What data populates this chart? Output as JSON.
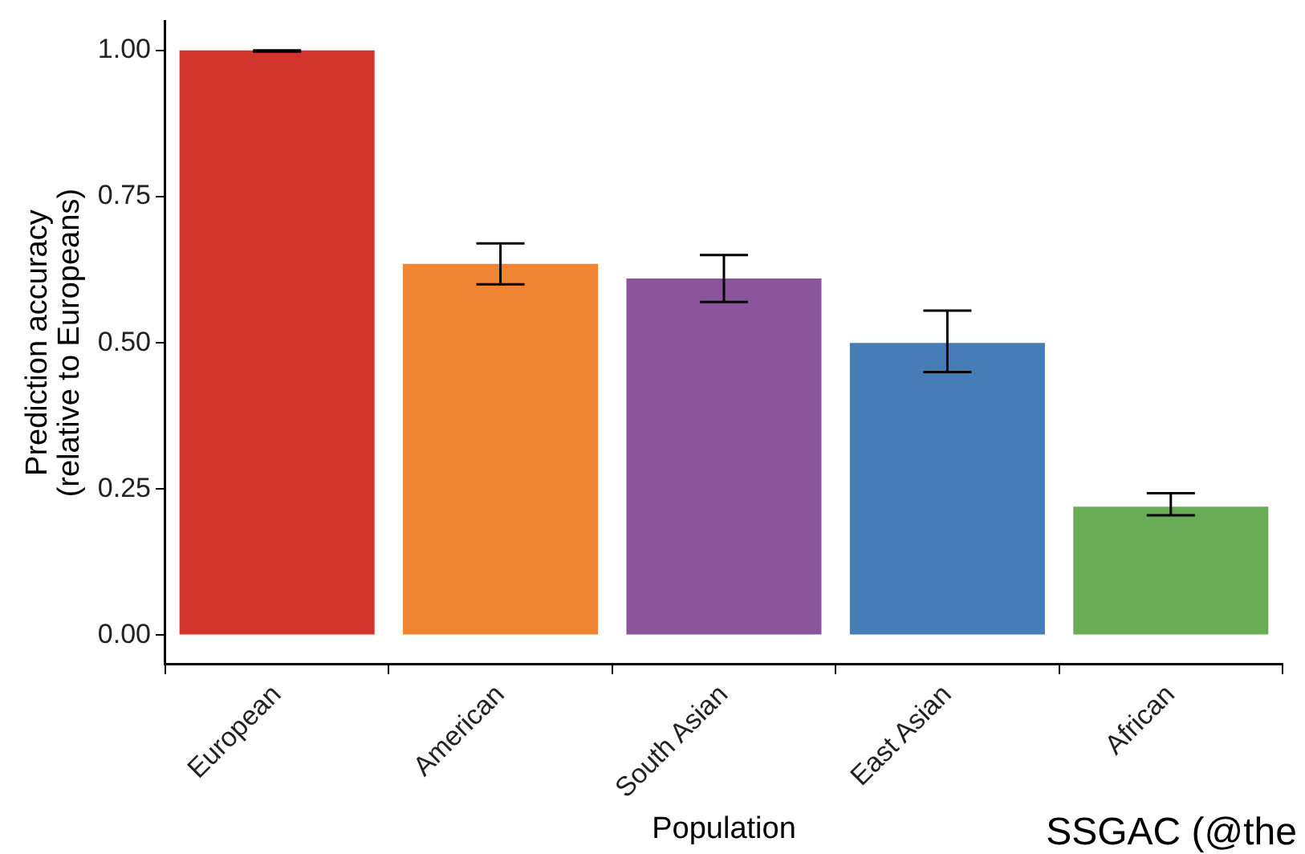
{
  "chart_data": {
    "type": "bar",
    "xlabel": "Population",
    "ylabel": "Prediction accuracy\n(relative to Europeans)",
    "categories": [
      "European",
      "American",
      "South Asian",
      "East Asian",
      "African"
    ],
    "values": [
      1.0,
      0.635,
      0.61,
      0.5,
      0.22
    ],
    "colors": [
      "#d2352b",
      "#ef8532",
      "#8b559d",
      "#467db6",
      "#68ad56"
    ],
    "errors": [
      [
        0.998,
        1.0
      ],
      [
        0.6,
        0.67
      ],
      [
        0.57,
        0.65
      ],
      [
        0.45,
        0.555
      ],
      [
        0.205,
        0.243
      ]
    ],
    "ylim": [
      -0.05,
      1.05
    ],
    "yticks": [
      {
        "value": 0,
        "label": "0.00"
      },
      {
        "value": 0.25,
        "label": "0.25"
      },
      {
        "value": 0.5,
        "label": "0.50"
      },
      {
        "value": 0.75,
        "label": "0.75"
      },
      {
        "value": 1,
        "label": "1.00"
      }
    ],
    "grid": false,
    "legend": false,
    "annotations": [
      "SSGAC (@the"
    ]
  }
}
